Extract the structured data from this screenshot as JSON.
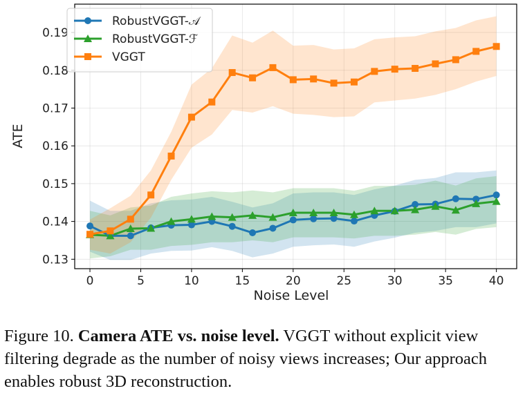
{
  "chart_data": {
    "type": "line",
    "title": "",
    "xlabel": "Noise Level",
    "ylabel": "ATE",
    "xlim": [
      -1.5,
      42
    ],
    "ylim": [
      0.1275,
      0.1975
    ],
    "xticks": [
      0,
      5,
      10,
      15,
      20,
      25,
      30,
      35,
      40
    ],
    "yticks": [
      0.13,
      0.14,
      0.15,
      0.16,
      0.17,
      0.18,
      0.19
    ],
    "ytick_labels": [
      "0.13",
      "0.14",
      "0.15",
      "0.16",
      "0.17",
      "0.18",
      "0.19"
    ],
    "grid": true,
    "legend_position": "top-left",
    "x": [
      0,
      2,
      4,
      6,
      8,
      10,
      12,
      14,
      16,
      18,
      20,
      22,
      24,
      26,
      28,
      30,
      32,
      34,
      36,
      38,
      40
    ],
    "series": [
      {
        "name": "RobustVGGT-𝒜",
        "color": "#1f77b4",
        "marker": "circle",
        "values": [
          0.1388,
          0.1362,
          0.1362,
          0.1383,
          0.139,
          0.1391,
          0.14,
          0.1387,
          0.137,
          0.1382,
          0.1404,
          0.1407,
          0.1408,
          0.1401,
          0.1416,
          0.1427,
          0.1445,
          0.1446,
          0.146,
          0.1459,
          0.147
        ],
        "band_lower": [
          0.132,
          0.1298,
          0.1298,
          0.1315,
          0.1322,
          0.1323,
          0.1332,
          0.1322,
          0.1305,
          0.1315,
          0.1333,
          0.1337,
          0.1339,
          0.1333,
          0.1347,
          0.1357,
          0.137,
          0.1375,
          0.1385,
          0.1385,
          0.1395
        ],
        "band_upper": [
          0.1455,
          0.1428,
          0.1428,
          0.1448,
          0.1456,
          0.1458,
          0.1465,
          0.1452,
          0.1437,
          0.1448,
          0.1474,
          0.1477,
          0.1477,
          0.147,
          0.1485,
          0.1495,
          0.151,
          0.1515,
          0.153,
          0.153,
          0.1535
        ]
      },
      {
        "name": "RobustVGGT-ℱ",
        "color": "#2ca02c",
        "marker": "triangle",
        "values": [
          0.1365,
          0.1362,
          0.1381,
          0.1382,
          0.14,
          0.1406,
          0.1413,
          0.1411,
          0.1416,
          0.1411,
          0.1423,
          0.1423,
          0.1423,
          0.1418,
          0.1428,
          0.1428,
          0.1431,
          0.144,
          0.143,
          0.1447,
          0.1453
        ],
        "band_lower": [
          0.1302,
          0.1308,
          0.1325,
          0.1325,
          0.1335,
          0.1338,
          0.1345,
          0.1345,
          0.135,
          0.1345,
          0.1358,
          0.1358,
          0.1358,
          0.1355,
          0.1362,
          0.1362,
          0.1365,
          0.1372,
          0.1365,
          0.138,
          0.1385
        ],
        "band_upper": [
          0.1428,
          0.1416,
          0.1437,
          0.1442,
          0.1465,
          0.1474,
          0.148,
          0.1477,
          0.1482,
          0.1477,
          0.1488,
          0.1488,
          0.1488,
          0.1481,
          0.1494,
          0.1494,
          0.1497,
          0.1508,
          0.1495,
          0.1514,
          0.152
        ]
      },
      {
        "name": "VGGT",
        "color": "#ff7f0e",
        "marker": "square",
        "values": [
          0.1366,
          0.1375,
          0.1406,
          0.147,
          0.1573,
          0.1676,
          0.1716,
          0.1794,
          0.178,
          0.1807,
          0.1775,
          0.1777,
          0.1766,
          0.1769,
          0.1797,
          0.1803,
          0.1805,
          0.1817,
          0.1828,
          0.185,
          0.1863
        ],
        "band_lower": [
          0.1325,
          0.1315,
          0.1345,
          0.141,
          0.151,
          0.1595,
          0.163,
          0.1695,
          0.1688,
          0.1705,
          0.1685,
          0.1682,
          0.1676,
          0.1678,
          0.1715,
          0.172,
          0.1725,
          0.1735,
          0.175,
          0.177,
          0.1785
        ],
        "band_upper": [
          0.1405,
          0.1435,
          0.1468,
          0.1535,
          0.1637,
          0.1762,
          0.1805,
          0.1892,
          0.1873,
          0.1905,
          0.1865,
          0.1867,
          0.1855,
          0.1858,
          0.1882,
          0.1887,
          0.189,
          0.1903,
          0.1912,
          0.1932,
          0.1943
        ]
      }
    ]
  },
  "caption": {
    "figure_label": "Figure 10.",
    "bold_title": "Camera ATE vs. noise level.",
    "body": "VGGT without explicit view filtering degrade as the number of noisy views increases; Our approach enables robust 3D reconstruction."
  }
}
